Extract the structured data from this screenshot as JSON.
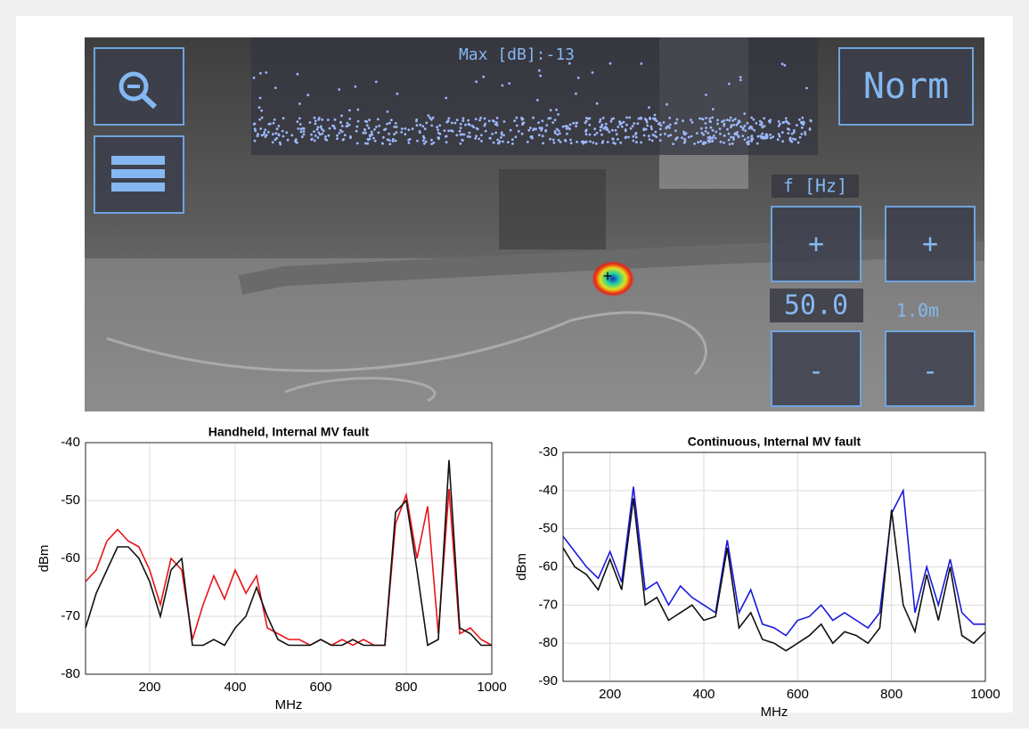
{
  "camera_view": {
    "max_label": "Max [dB]:-13",
    "mode_button": "Norm",
    "freq_label": "f [Hz]",
    "plus_left": "+",
    "plus_right": "+",
    "freq_value": "50.0",
    "range_value": "1.0m",
    "minus_left": "-",
    "minus_right": "-"
  },
  "chart_data": [
    {
      "type": "line",
      "title": "Handheld, Internal MV fault",
      "x_label": "MHz",
      "y_label": "dBm",
      "x": [
        50,
        75,
        100,
        125,
        150,
        175,
        200,
        225,
        250,
        275,
        300,
        325,
        350,
        375,
        400,
        425,
        450,
        475,
        500,
        525,
        550,
        575,
        600,
        625,
        650,
        675,
        700,
        725,
        750,
        775,
        800,
        825,
        850,
        875,
        900,
        925,
        950,
        975,
        1000
      ],
      "series": [
        {
          "color": "#e8141a",
          "values": [
            -64,
            -62,
            -57,
            -55,
            -57,
            -58,
            -62,
            -68,
            -60,
            -62,
            -74,
            -68,
            -63,
            -67,
            -62,
            -66,
            -63,
            -72,
            -73,
            -74,
            -74,
            -75,
            -74,
            -75,
            -74,
            -75,
            -74,
            -75,
            -75,
            -54,
            -49,
            -60,
            -51,
            -73,
            -48,
            -73,
            -72,
            -74,
            -75
          ]
        },
        {
          "color": "#111111",
          "values": [
            -72,
            -66,
            -62,
            -58,
            -58,
            -60,
            -64,
            -70,
            -62,
            -60,
            -75,
            -75,
            -74,
            -75,
            -72,
            -70,
            -65,
            -70,
            -74,
            -75,
            -75,
            -75,
            -74,
            -75,
            -75,
            -74,
            -75,
            -75,
            -75,
            -52,
            -50,
            -62,
            -75,
            -74,
            -43,
            -72,
            -73,
            -75,
            -75
          ]
        }
      ],
      "xlim": [
        50,
        1000
      ],
      "xticks": [
        200,
        400,
        600,
        800,
        1000
      ],
      "ylim": [
        -80,
        -40
      ],
      "yticks": [
        -80,
        -70,
        -60,
        -50,
        -40
      ],
      "grid": true
    },
    {
      "type": "line",
      "title": "Continuous, Internal MV fault",
      "x_label": "MHz",
      "y_label": "dBm",
      "x": [
        100,
        125,
        150,
        175,
        200,
        225,
        250,
        275,
        300,
        325,
        350,
        375,
        400,
        425,
        450,
        475,
        500,
        525,
        550,
        575,
        600,
        625,
        650,
        675,
        700,
        725,
        750,
        775,
        800,
        825,
        850,
        875,
        900,
        925,
        950,
        975,
        1000
      ],
      "series": [
        {
          "color": "#1a1adc",
          "values": [
            -52,
            -56,
            -60,
            -63,
            -56,
            -64,
            -39,
            -66,
            -64,
            -70,
            -65,
            -68,
            -70,
            -72,
            -53,
            -72,
            -66,
            -75,
            -76,
            -78,
            -74,
            -73,
            -70,
            -74,
            -72,
            -74,
            -76,
            -72,
            -46,
            -40,
            -72,
            -60,
            -70,
            -58,
            -72,
            -75,
            -75
          ]
        },
        {
          "color": "#111111",
          "values": [
            -55,
            -60,
            -62,
            -66,
            -58,
            -66,
            -42,
            -70,
            -68,
            -74,
            -72,
            -70,
            -74,
            -73,
            -55,
            -76,
            -72,
            -79,
            -80,
            -82,
            -80,
            -78,
            -75,
            -80,
            -77,
            -78,
            -80,
            -76,
            -45,
            -70,
            -77,
            -62,
            -74,
            -60,
            -78,
            -80,
            -77
          ]
        }
      ],
      "xlim": [
        100,
        1000
      ],
      "xticks": [
        200,
        400,
        600,
        800,
        1000
      ],
      "ylim": [
        -90,
        -30
      ],
      "yticks": [
        -90,
        -80,
        -70,
        -60,
        -50,
        -40,
        -30
      ],
      "grid": true
    }
  ]
}
